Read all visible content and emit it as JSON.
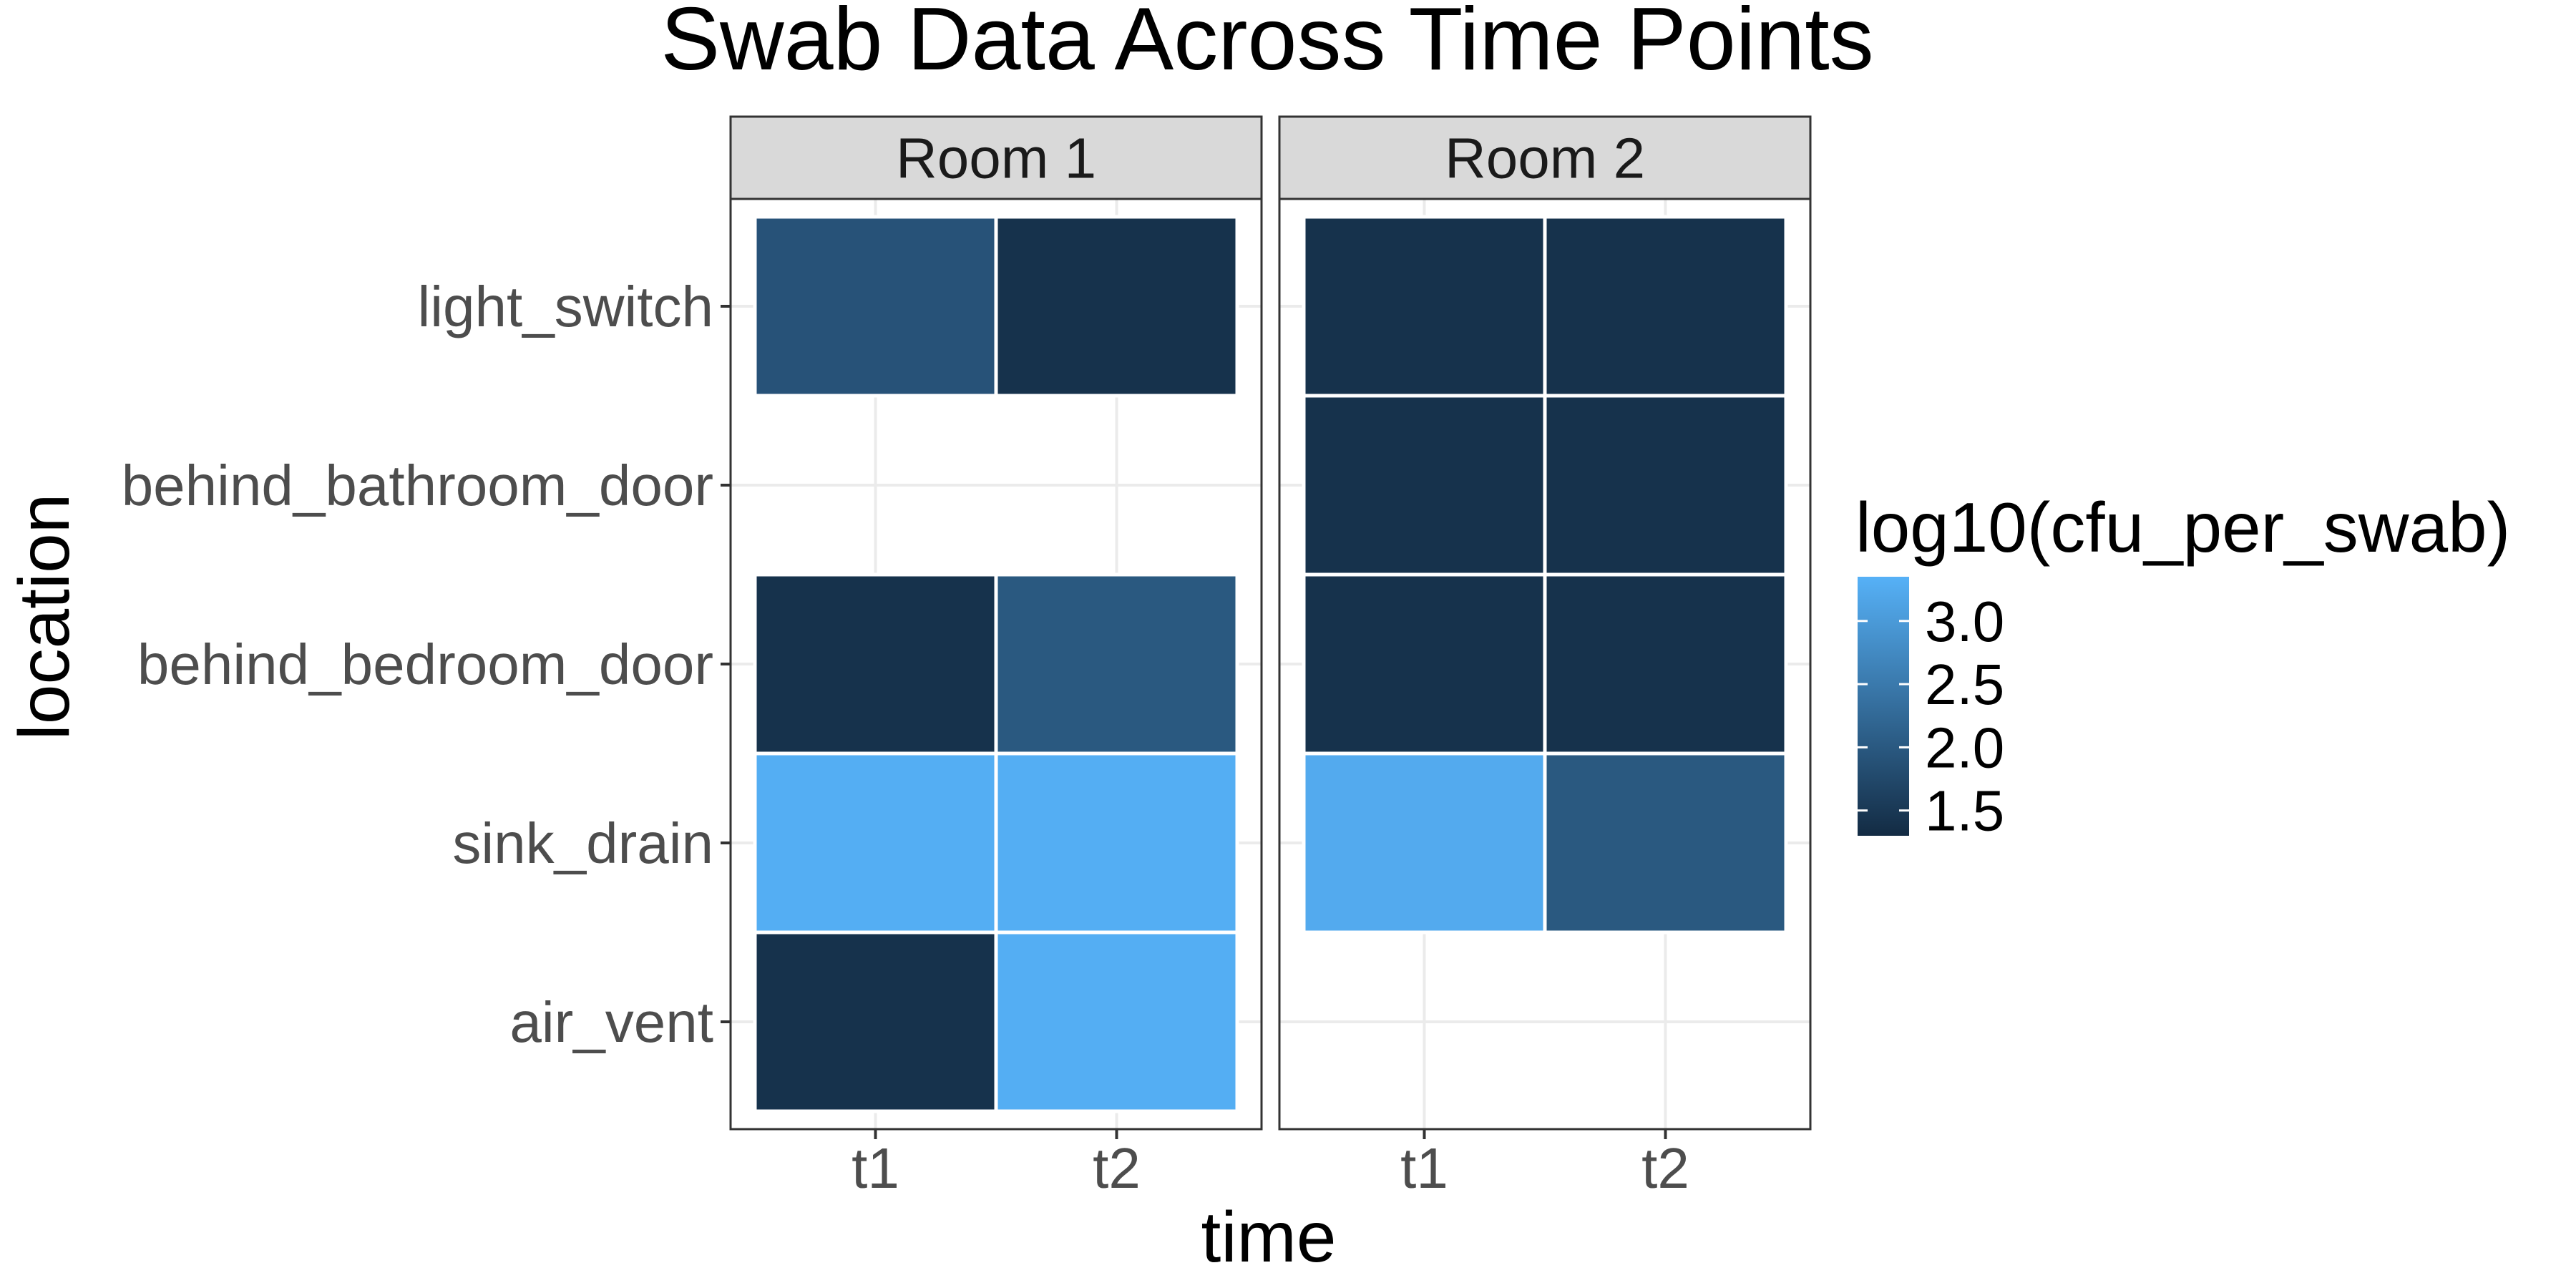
{
  "chart_data": {
    "type": "heatmap",
    "title": "Swab Data Across Time Points",
    "xlabel": "time",
    "ylabel": "location",
    "x_categories": [
      "t1",
      "t2"
    ],
    "y_categories": [
      "light_switch",
      "behind_bathroom_door",
      "behind_bedroom_door",
      "sink_drain",
      "air_vent"
    ],
    "facets": [
      {
        "name": "Room 1",
        "cells": [
          {
            "x": "t1",
            "y": "light_switch",
            "value": 1.9
          },
          {
            "x": "t2",
            "y": "light_switch",
            "value": 1.4
          },
          {
            "x": "t1",
            "y": "behind_bedroom_door",
            "value": 1.4
          },
          {
            "x": "t2",
            "y": "behind_bedroom_door",
            "value": 2.0
          },
          {
            "x": "t1",
            "y": "sink_drain",
            "value": 3.3
          },
          {
            "x": "t2",
            "y": "sink_drain",
            "value": 3.3
          },
          {
            "x": "t1",
            "y": "air_vent",
            "value": 1.4
          },
          {
            "x": "t2",
            "y": "air_vent",
            "value": 3.3
          }
        ]
      },
      {
        "name": "Room 2",
        "cells": [
          {
            "x": "t1",
            "y": "light_switch",
            "value": 1.4
          },
          {
            "x": "t2",
            "y": "light_switch",
            "value": 1.4
          },
          {
            "x": "t1",
            "y": "behind_bathroom_door",
            "value": 1.4
          },
          {
            "x": "t2",
            "y": "behind_bathroom_door",
            "value": 1.4
          },
          {
            "x": "t1",
            "y": "behind_bedroom_door",
            "value": 1.4
          },
          {
            "x": "t2",
            "y": "behind_bedroom_door",
            "value": 1.4
          },
          {
            "x": "t1",
            "y": "sink_drain",
            "value": 3.25
          },
          {
            "x": "t2",
            "y": "sink_drain",
            "value": 2.0
          }
        ]
      }
    ],
    "legend": {
      "title": "log10(cfu_per_swab)",
      "breaks": [
        1.5,
        2.0,
        2.5,
        3.0
      ],
      "break_labels": [
        "1.5",
        "2.0",
        "2.5",
        "3.0"
      ],
      "range": [
        1.3,
        3.35
      ],
      "low_color": "#132B43",
      "high_color": "#56B1F7",
      "placement": "right"
    },
    "grid": true,
    "theme": "bw"
  }
}
